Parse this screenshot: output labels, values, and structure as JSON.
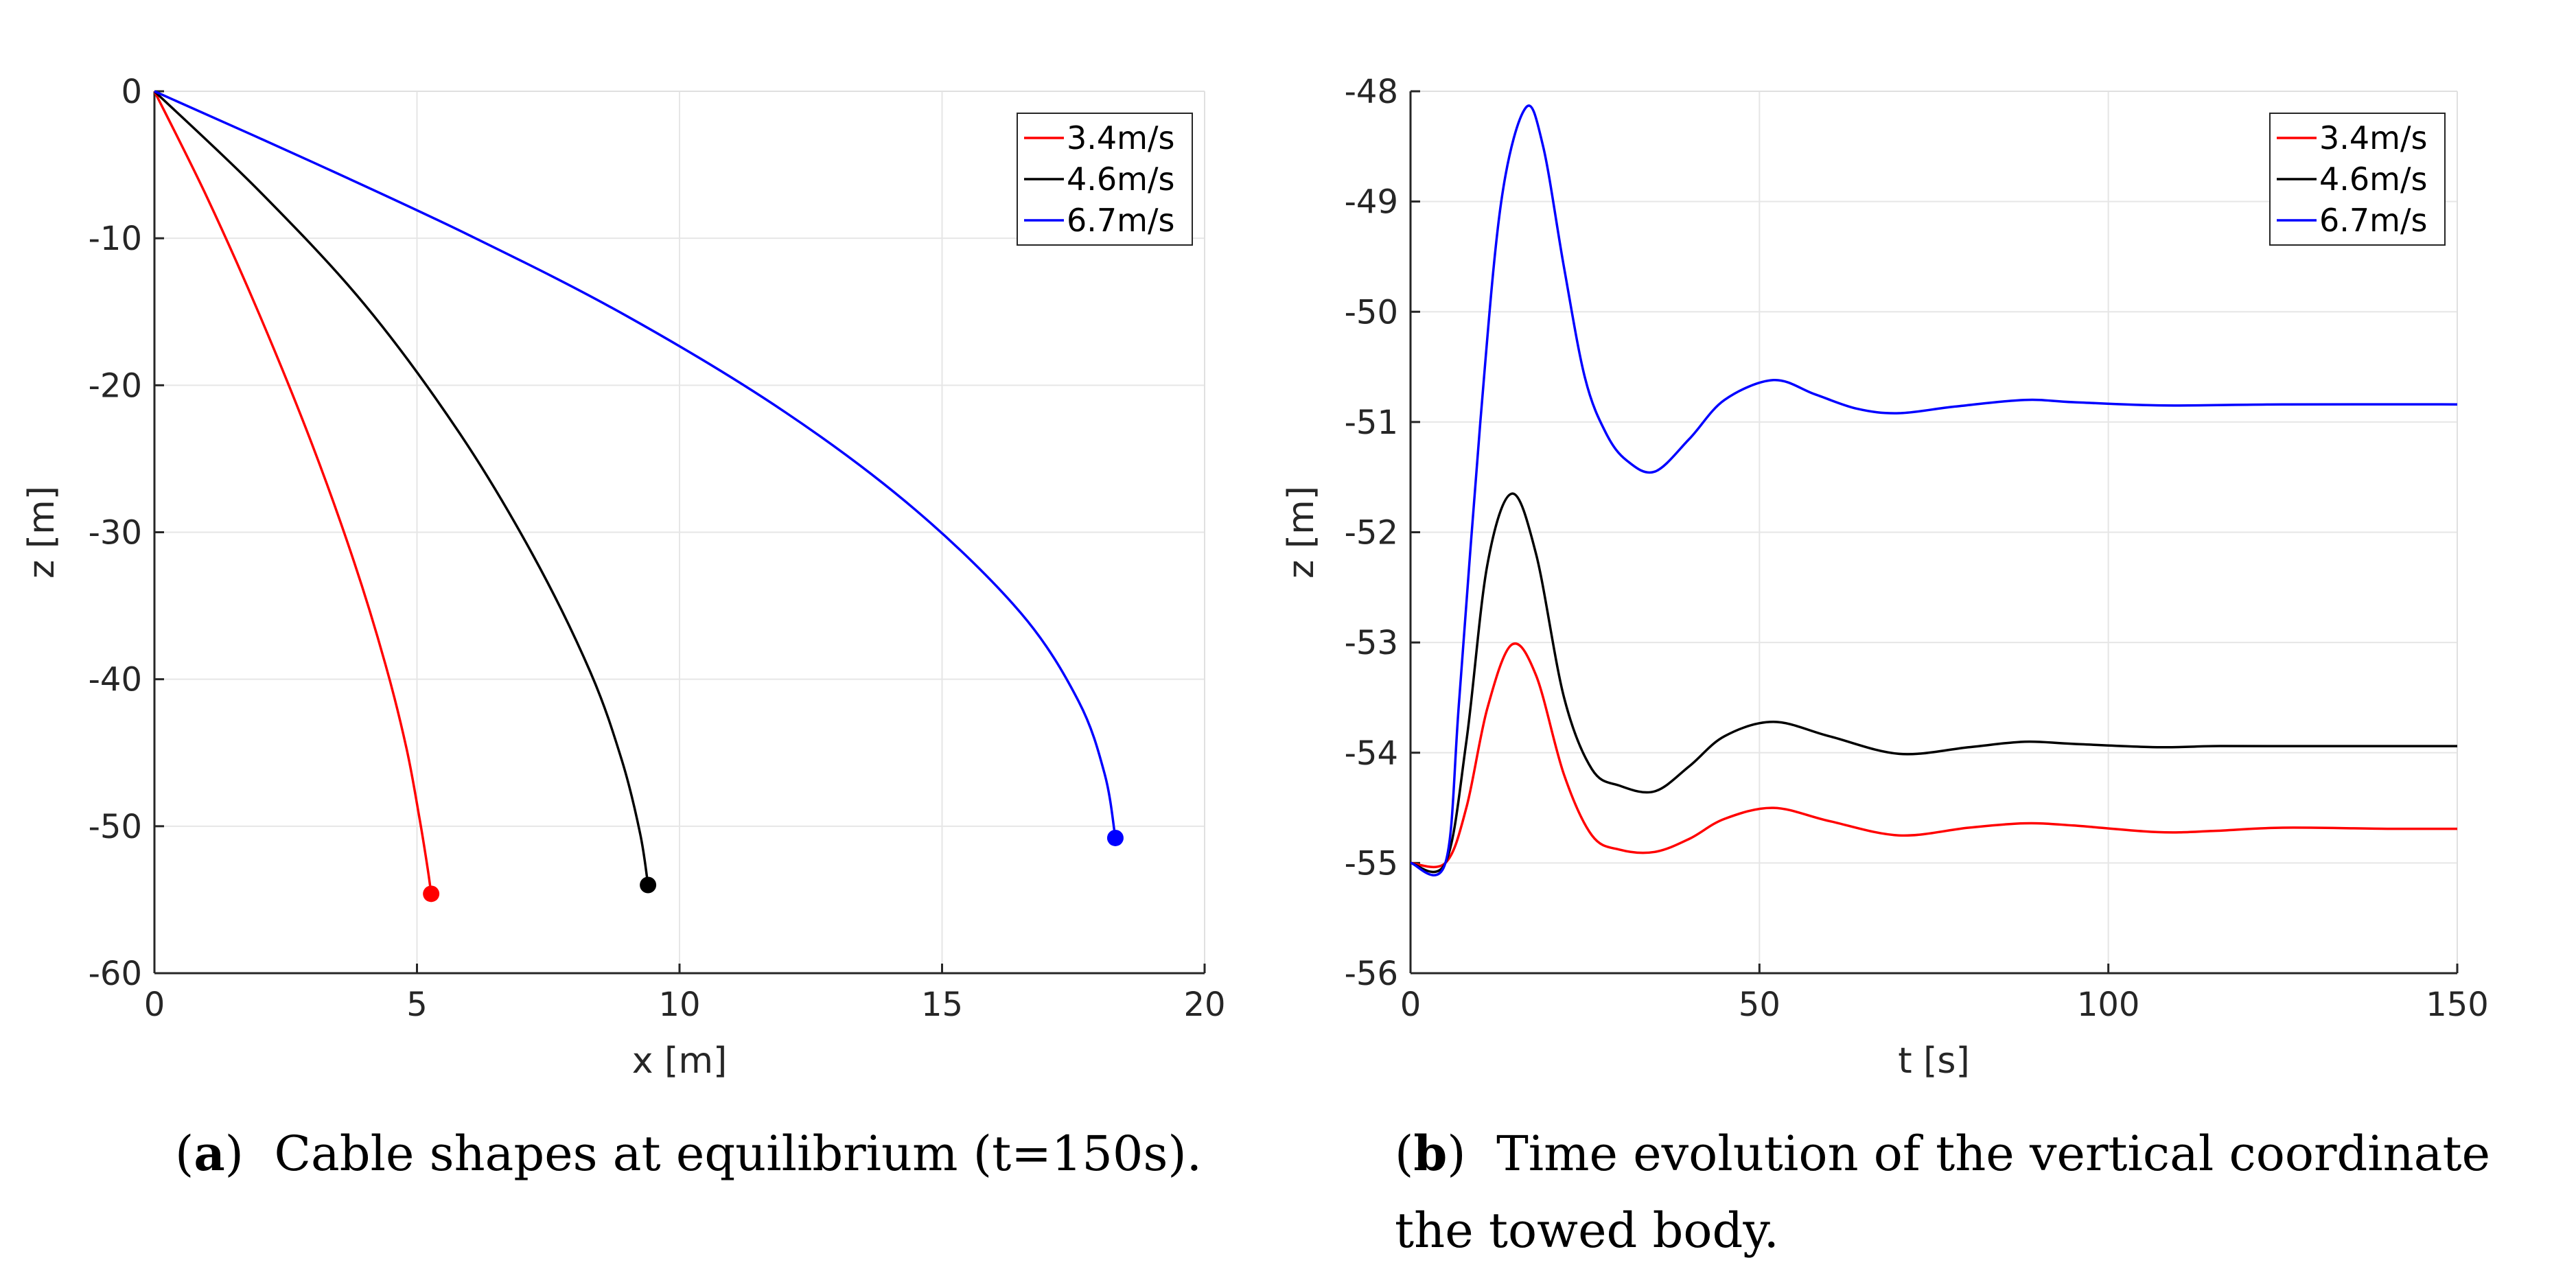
{
  "chart_data": [
    {
      "type": "line",
      "panel": "a",
      "title": "",
      "xlabel": "x [m]",
      "ylabel": "z [m]",
      "xlim": [
        0,
        20
      ],
      "ylim": [
        -60,
        0
      ],
      "xticks": [
        "0",
        "5",
        "10",
        "15",
        "20"
      ],
      "yticks": [
        "0",
        "-10",
        "-20",
        "-30",
        "-40",
        "-50",
        "-60"
      ],
      "grid": true,
      "legend_position": "top-right",
      "series": [
        {
          "name": "3.4m/s",
          "color": "#ff0000",
          "end_marker": true,
          "x": [
            0,
            1.0,
            2.0,
            3.0,
            3.8,
            4.4,
            4.8,
            5.05,
            5.2,
            5.27
          ],
          "y": [
            0,
            -7.2,
            -15.2,
            -24.0,
            -32.0,
            -39.0,
            -44.7,
            -49.5,
            -52.8,
            -54.6
          ]
        },
        {
          "name": "4.6m/s",
          "color": "#000000",
          "end_marker": true,
          "x": [
            0,
            2.0,
            4.0,
            5.8,
            7.2,
            8.3,
            8.9,
            9.25,
            9.4
          ],
          "y": [
            0,
            -6.8,
            -14.5,
            -23.2,
            -31.5,
            -39.5,
            -45.5,
            -50.5,
            -54.0
          ]
        },
        {
          "name": "6.7m/s",
          "color": "#0000ff",
          "end_marker": true,
          "x": [
            0,
            3.0,
            6.0,
            9.0,
            12.0,
            14.5,
            16.5,
            17.6,
            18.1,
            18.3
          ],
          "y": [
            0,
            -4.8,
            -9.8,
            -15.3,
            -21.8,
            -28.5,
            -35.5,
            -41.5,
            -46.5,
            -50.8
          ]
        }
      ]
    },
    {
      "type": "line",
      "panel": "b",
      "title": "",
      "xlabel": "t [s]",
      "ylabel": "z [m]",
      "xlim": [
        0,
        150
      ],
      "ylim": [
        -56,
        -48
      ],
      "xticks": [
        "0",
        "50",
        "100",
        "150"
      ],
      "yticks": [
        "-48",
        "-49",
        "-50",
        "-51",
        "-52",
        "-53",
        "-54",
        "-55",
        "-56"
      ],
      "grid": true,
      "legend_position": "top-right",
      "series": [
        {
          "name": "3.4m/s",
          "color": "#ff0000",
          "x": [
            0,
            5,
            8,
            11,
            14.5,
            18,
            22,
            26,
            30,
            35,
            40,
            45,
            52,
            60,
            70,
            80,
            88,
            95,
            107,
            115,
            125,
            140,
            150
          ],
          "y": [
            -55.0,
            -55.0,
            -54.5,
            -53.6,
            -53.02,
            -53.3,
            -54.2,
            -54.75,
            -54.88,
            -54.9,
            -54.78,
            -54.6,
            -54.5,
            -54.62,
            -54.75,
            -54.68,
            -54.64,
            -54.66,
            -54.72,
            -54.71,
            -54.68,
            -54.69,
            -54.69
          ]
        },
        {
          "name": "4.6m/s",
          "color": "#000000",
          "x": [
            0,
            5,
            8,
            11,
            14.5,
            18,
            22,
            26,
            30,
            35,
            40,
            45,
            52,
            60,
            70,
            80,
            88,
            95,
            107,
            115,
            125,
            140,
            150
          ],
          "y": [
            -55.0,
            -55.0,
            -53.9,
            -52.3,
            -51.65,
            -52.2,
            -53.5,
            -54.15,
            -54.3,
            -54.35,
            -54.12,
            -53.85,
            -53.72,
            -53.85,
            -54.01,
            -53.95,
            -53.9,
            -53.92,
            -53.95,
            -53.94,
            -53.94,
            -53.94,
            -53.94
          ]
        },
        {
          "name": "6.7m/s",
          "color": "#0000ff",
          "x": [
            0,
            5,
            7,
            10,
            13,
            16.5,
            19,
            22,
            25,
            28,
            31,
            35,
            40,
            45,
            52,
            58,
            64,
            70,
            78,
            88,
            95,
            108,
            125,
            150
          ],
          "y": [
            -55.0,
            -55.0,
            -53.5,
            -51.0,
            -49.0,
            -48.15,
            -48.5,
            -49.6,
            -50.6,
            -51.1,
            -51.35,
            -51.45,
            -51.15,
            -50.8,
            -50.62,
            -50.75,
            -50.88,
            -50.92,
            -50.86,
            -50.8,
            -50.82,
            -50.85,
            -50.84,
            -50.84
          ]
        }
      ]
    }
  ],
  "captions": {
    "a": {
      "label": "a",
      "text": "Cable shapes at equilibrium (t=150s)."
    },
    "b": {
      "label": "b",
      "text": "Time evolution of the vertical coordinate",
      "text2": "the towed body."
    }
  }
}
